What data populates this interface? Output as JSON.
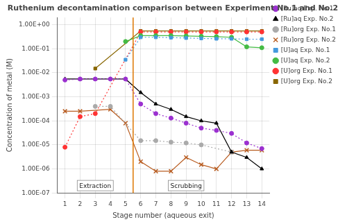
{
  "chart_data": {
    "type": "line",
    "title": "Ruthenium decontamination comparison between Experiment No.1 and No.2",
    "x_label": "Stage number (aqueous exit)",
    "y_label": "Concentration of metal (M)",
    "x": [
      1,
      2,
      3,
      4,
      5,
      6,
      7,
      8,
      9,
      10,
      11,
      12,
      13,
      14
    ],
    "series": [
      {
        "name": "[Ru]aq Exp. No.1",
        "color": "#9b30d0",
        "marker": "circle",
        "line_style": "dotted",
        "values": [
          0.005,
          0.0055,
          0.0055,
          0.0055,
          0.0055,
          0.0005,
          0.0002,
          0.00013,
          8e-05,
          5e-05,
          4e-05,
          3e-05,
          1.2e-05,
          7e-06
        ]
      },
      {
        "name": "[Ru]aq Exp. No.2",
        "color": "#000000",
        "marker": "triangle",
        "line_style": "solid",
        "values": [
          0.0055,
          0.0055,
          0.0055,
          0.0055,
          0.0055,
          0.0015,
          0.0005,
          0.0003,
          0.00015,
          0.0001,
          8e-05,
          5e-06,
          3e-06,
          1e-06
        ]
      },
      {
        "name": "[Ru]org Exp. No.1",
        "color": "#aaaaaa",
        "marker": "circle",
        "line_style": "dotted",
        "values": [
          null,
          null,
          0.0004,
          0.0004,
          null,
          1.5e-05,
          1.5e-05,
          1.3e-05,
          1.2e-05,
          1e-05,
          null,
          5e-06,
          null,
          null
        ]
      },
      {
        "name": "[Ru]org Exp. No.2",
        "color": "#b85c20",
        "marker": "x",
        "line_style": "solid",
        "values": [
          0.00025,
          0.00025,
          null,
          0.0003,
          8e-05,
          2e-06,
          8e-07,
          8e-07,
          3e-06,
          1.5e-06,
          1e-06,
          5e-06,
          6e-06,
          6e-06
        ]
      },
      {
        "name": "[U]aq Exp. No.1",
        "color": "#4499dd",
        "marker": "square",
        "line_style": "dotted",
        "values": [
          null,
          null,
          null,
          null,
          0.035,
          0.3,
          0.3,
          0.29,
          0.28,
          0.27,
          0.26,
          0.26,
          0.25,
          0.25
        ]
      },
      {
        "name": "[U]aq Exp. No.2",
        "color": "#44bb44",
        "marker": "circle",
        "line_style": "solid",
        "values": [
          null,
          null,
          null,
          null,
          0.2,
          0.35,
          0.35,
          0.35,
          0.34,
          0.33,
          0.32,
          0.3,
          0.12,
          0.11
        ]
      },
      {
        "name": "[U]org Exp. No.1",
        "color": "#ff3333",
        "marker": "circle",
        "line_style": "dotted",
        "values": [
          8e-06,
          0.00015,
          0.0002,
          null,
          null,
          0.5,
          0.5,
          0.5,
          0.5,
          0.5,
          0.5,
          0.5,
          0.5,
          0.5
        ]
      },
      {
        "name": "[U]org Exp. No.2",
        "color": "#886600",
        "marker": "square",
        "line_style": "solid",
        "values": [
          null,
          null,
          0.015,
          null,
          null,
          0.55,
          0.55,
          0.55,
          0.55,
          0.55,
          0.55,
          0.55,
          0.55,
          0.55
        ]
      }
    ],
    "log": "y",
    "xlim": [
      0.5,
      14.5
    ],
    "xticks": [
      1,
      2,
      3,
      4,
      5,
      6,
      7,
      8,
      9,
      10,
      11,
      12,
      13,
      14
    ],
    "ylim": [
      1e-07,
      2.0
    ],
    "yticks": [
      {
        "value": 1e-07,
        "label": "1.00E-07"
      },
      {
        "value": 1e-06,
        "label": "1.00E-06"
      },
      {
        "value": 1e-05,
        "label": "1.00E-05"
      },
      {
        "value": 0.0001,
        "label": "1.00E-04"
      },
      {
        "value": 0.001,
        "label": "1.00E-03"
      },
      {
        "value": 0.01,
        "label": "1.00E-02"
      },
      {
        "value": 0.1,
        "label": "1.00E-01"
      },
      {
        "value": 1.0,
        "label": "1.00E+00"
      }
    ],
    "vline": {
      "x": 5.5,
      "color": "#dd7700"
    },
    "annotations": [
      {
        "text": "Extraction",
        "x": 3,
        "y": 1.5e-07
      },
      {
        "text": "Scrubbing",
        "x": 9,
        "y": 1.5e-07
      }
    ],
    "grid": true,
    "legend": "right"
  }
}
